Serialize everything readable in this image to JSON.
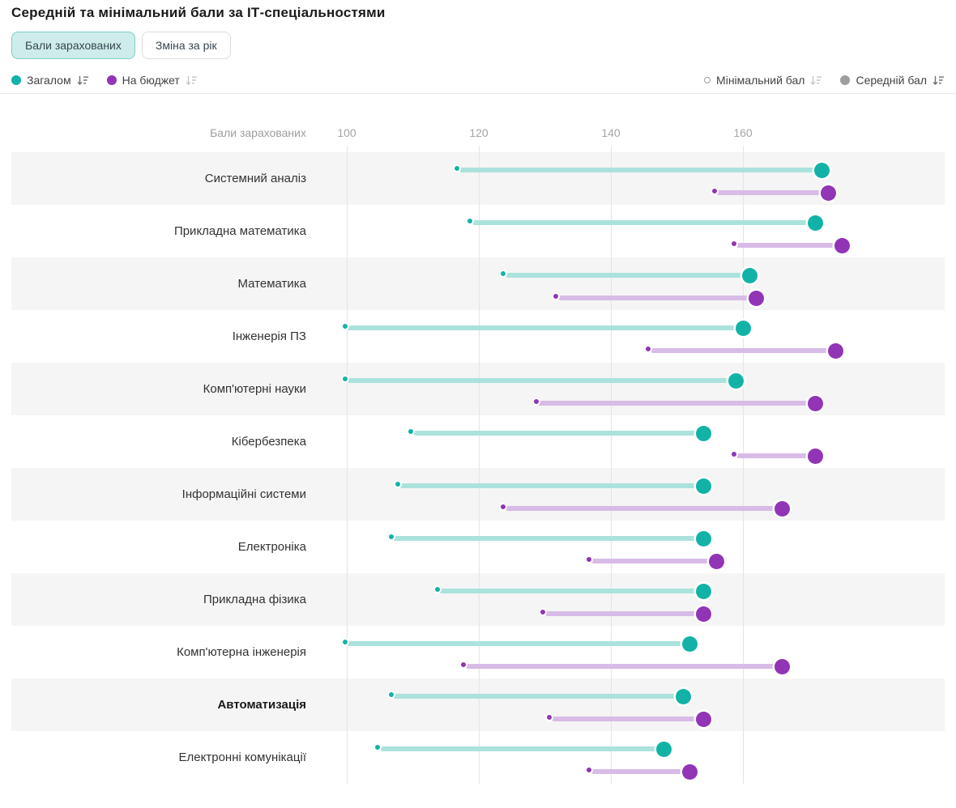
{
  "title": "Середній та мінімальний бали за ІТ-спеціальностями",
  "tabs": {
    "scores": "Бали зарахованих",
    "change": "Зміна за рік"
  },
  "legend": {
    "total": "Загалом",
    "budget": "На бюджет",
    "min": "Мінімальний бал",
    "avg": "Середній бал"
  },
  "colors": {
    "teal": "#12b3a6",
    "teal_light": "#abe2dc",
    "purple": "#9134b5",
    "purple_light": "#d8bbe7",
    "legend_gray": "#9e9e9e",
    "row_alt": "#f5f5f5",
    "active_tab_bg": "#cdecea",
    "active_tab_border": "#7fd0c9"
  },
  "chart_data": {
    "type": "dumbbell",
    "title": "Середній та мінімальний бали за ІТ-спеціальностями",
    "axis_label": "Бали зарахованих",
    "x_ticks": [
      100,
      120,
      140,
      160
    ],
    "x_range_visible": [
      95,
      192
    ],
    "grid": true,
    "legend_position": "top",
    "marker_meaning": {
      "open_circle": "Мінімальний бал",
      "filled_circle": "Середній бал"
    },
    "categories": [
      "Системний аналіз",
      "Прикладна математика",
      "Математика",
      "Інженерія ПЗ",
      "Комп'ютерні науки",
      "Кібербезпека",
      "Інформаційні системи",
      "Електроніка",
      "Прикладна фізика",
      "Комп'ютерна інженерія",
      "Автоматизація",
      "Електронні комунікації"
    ],
    "bold_category": "Автоматизація",
    "series": [
      {
        "name": "Загалом",
        "min": [
          117,
          119,
          124,
          100,
          100,
          110,
          108,
          107,
          114,
          100,
          107,
          105
        ],
        "avg": [
          172,
          171,
          161,
          160,
          159,
          154,
          154,
          154,
          154,
          152,
          151,
          148
        ]
      },
      {
        "name": "На бюджет",
        "min": [
          156,
          159,
          132,
          146,
          129,
          159,
          124,
          137,
          130,
          118,
          131,
          137
        ],
        "avg": [
          173,
          175,
          162,
          174,
          171,
          171,
          166,
          156,
          154,
          166,
          154,
          152
        ]
      }
    ]
  }
}
